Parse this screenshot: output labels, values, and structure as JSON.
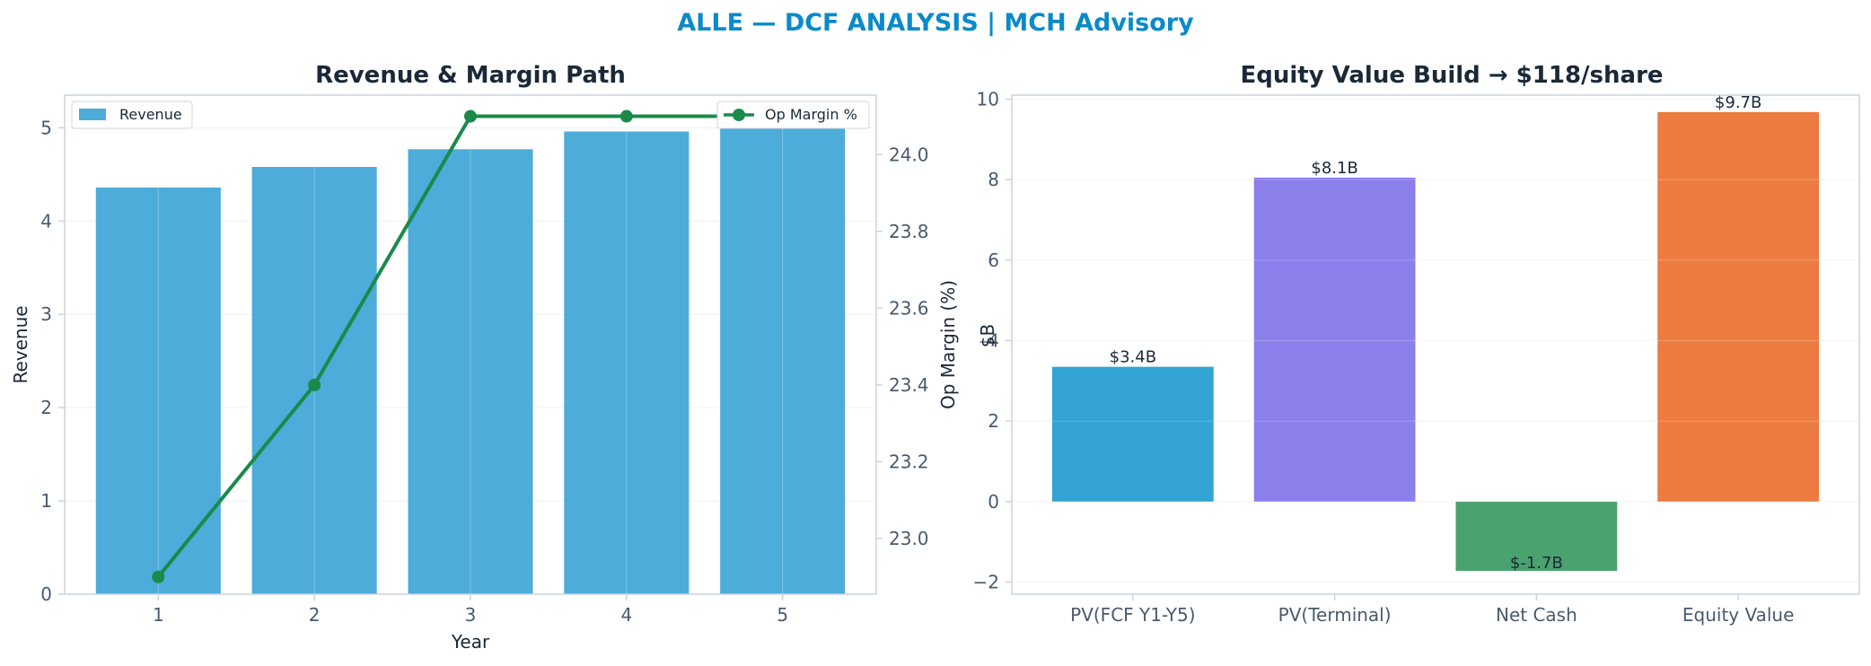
{
  "suptitle": "ALLE — DCF ANALYSIS | MCH Advisory",
  "colors": {
    "suptitle": "#0b8ac9",
    "title": "#1b2838",
    "tick": "#4a5a6e",
    "axis": "#ccd3de",
    "grid": "#eef1f5",
    "revenue_bar": "#4dacd9",
    "margin_line": "#1a8a4a"
  },
  "chart_data": [
    {
      "type": "bar",
      "title": "Revenue & Margin Path",
      "xlabel": "Year",
      "ylabel": "Revenue",
      "y2label": "Op Margin (%)",
      "categories": [
        "1",
        "2",
        "3",
        "4",
        "5"
      ],
      "series": [
        {
          "name": "Revenue",
          "type": "bar",
          "axis": "left",
          "values": [
            4.36,
            4.58,
            4.77,
            4.96,
            5.15
          ],
          "color": "#4dacd9"
        },
        {
          "name": "Op Margin %",
          "type": "line",
          "axis": "right",
          "values": [
            22.9,
            23.4,
            24.1,
            24.1,
            24.1
          ],
          "color": "#1a8a4a"
        }
      ],
      "ylim": [
        0,
        5.35
      ],
      "y2lim": [
        22.855,
        24.155
      ],
      "yticks": [
        0,
        1,
        2,
        3,
        4,
        5
      ],
      "y2ticks": [
        "23.0",
        "23.2",
        "23.4",
        "23.6",
        "23.8",
        "24.0"
      ],
      "grid": true,
      "legend": {
        "bars": "top-left",
        "line": "top-right"
      }
    },
    {
      "type": "bar",
      "title": "Equity Value Build → $118/share",
      "xlabel": "",
      "ylabel": "$B",
      "categories": [
        "PV(FCF Y1-Y5)",
        "PV(Terminal)",
        "Net Cash",
        "Equity Value"
      ],
      "values": [
        3.35,
        8.05,
        -1.72,
        9.68
      ],
      "data_labels": [
        "$3.4B",
        "$8.1B",
        "$-1.7B",
        "$9.7B"
      ],
      "colors": [
        "#33a3d4",
        "#8b7fec",
        "#4aa26e",
        "#ec7b3f"
      ],
      "ylim": [
        -2.3,
        10.1
      ],
      "yticks": [
        "−2",
        "0",
        "2",
        "4",
        "6",
        "8",
        "10"
      ],
      "grid": true
    }
  ]
}
